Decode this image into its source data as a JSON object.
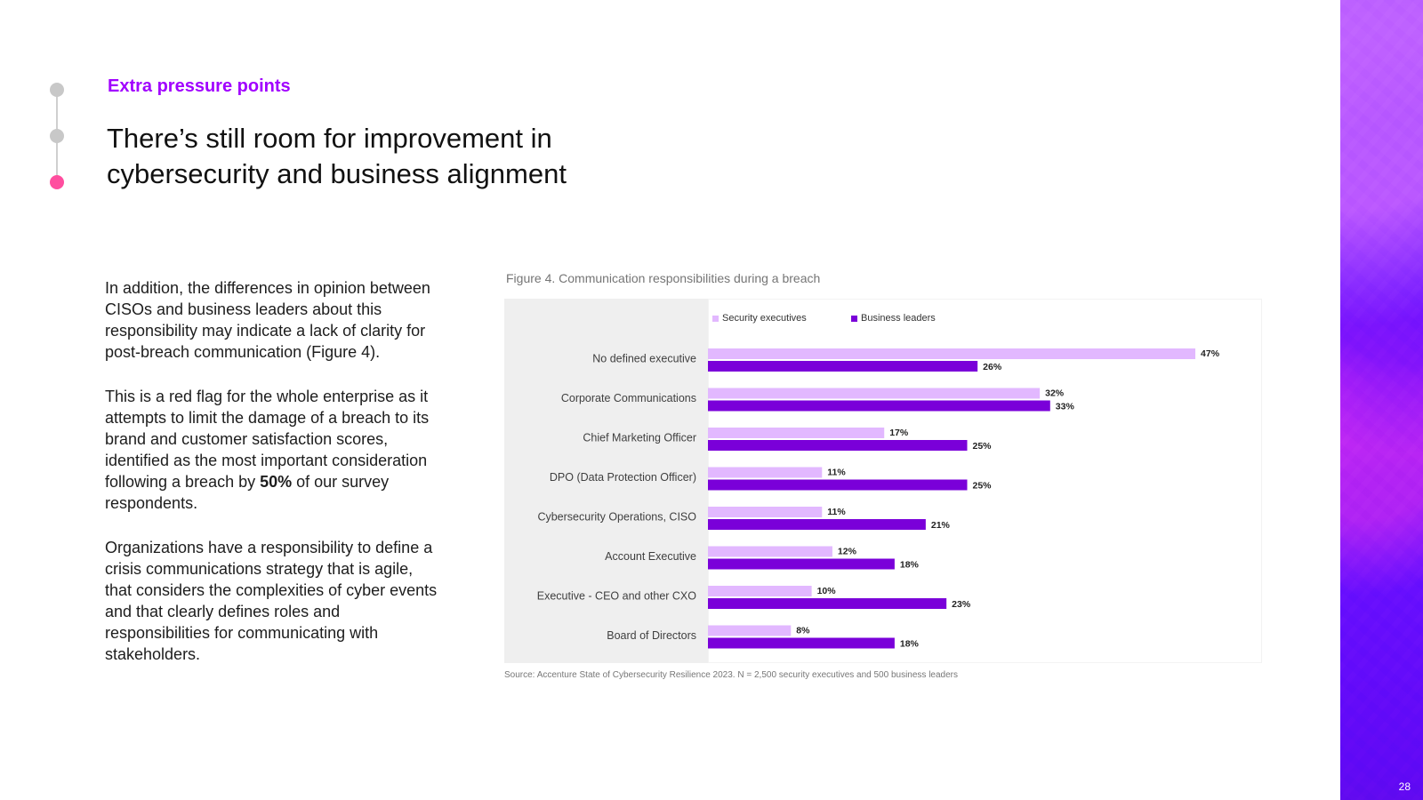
{
  "header": {
    "kicker": "Extra pressure points",
    "title": "There’s still room for improvement in cybersecurity and business alignment"
  },
  "body": {
    "paragraph_1": "In addition, the differences in opinion between CISOs and business leaders about this responsibility may indicate a lack of clarity for post-breach communication (Figure 4).",
    "paragraph_2_before": "This is a red flag for the whole enterprise as it attempts to limit the damage of a breach to its brand and customer satisfaction scores, identified as the most important consideration following a breach by ",
    "paragraph_2_emphasis": "50%",
    "paragraph_2_after": " of our survey respondents.",
    "paragraph_3": "Organizations have a responsibility to define a crisis communications strategy that is agile, that considers the complexities of cyber events and that clearly defines roles and responsibilities for communicating with stakeholders."
  },
  "figure": {
    "caption": "Figure 4. Communication responsibilities during a breach",
    "source": "Source: Accenture State of Cybersecurity Resilience 2023. N = 2,500 security executives and 500 business leaders"
  },
  "chart_data": {
    "type": "bar",
    "orientation": "horizontal",
    "title": "",
    "xlabel": "",
    "ylabel": "",
    "categories": [
      "No defined executive",
      "Corporate Communications",
      "Chief Marketing Officer",
      "DPO (Data Protection Officer)",
      "Cybersecurity Operations, CISO",
      "Account Executive",
      "Executive - CEO and other CXO",
      "Board of Directors"
    ],
    "series": [
      {
        "name": "Security executives",
        "values": [
          47,
          32,
          17,
          11,
          11,
          12,
          10,
          8
        ],
        "color": "#e2b8ff"
      },
      {
        "name": "Business leaders",
        "values": [
          26,
          33,
          25,
          25,
          21,
          18,
          23,
          18
        ],
        "color": "#7a00d9"
      }
    ],
    "legend_position": "top-left",
    "xlim": [
      0,
      50
    ],
    "grid": false,
    "value_labels": true,
    "unit": "%"
  },
  "page": {
    "number": "28"
  }
}
